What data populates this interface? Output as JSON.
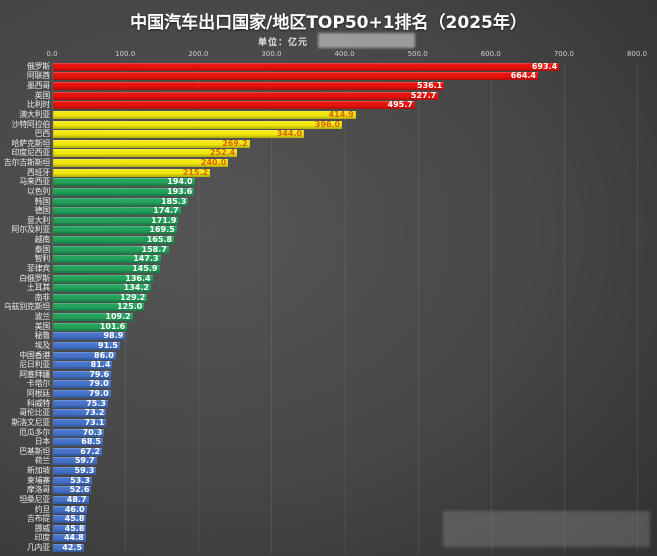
{
  "title": "中国汽车出口国家/地区TOP50+1排名（2025年）",
  "subtitle": "单位：亿元",
  "colors": {
    "background_center": "#555555",
    "background_edge": "#232323",
    "red": "#ea120c",
    "yellow": "#f2e90d",
    "green": "#23a25a",
    "blue": "#4674cb",
    "value_label_on_yellow": "#dd6500",
    "value_label_default": "#ffffff"
  },
  "chart_data": {
    "type": "bar",
    "orientation": "horizontal",
    "title": "中国汽车出口国家/地区TOP50+1排名（2025年）",
    "unit_label": "单位：亿元",
    "xlim": [
      0,
      800
    ],
    "tick_step": 100,
    "tick_labels": [
      "0.0",
      "100.0",
      "200.0",
      "300.0",
      "400.0",
      "500.0",
      "600.0",
      "700.0",
      "800.0"
    ],
    "grid": true,
    "value_labels_position": "inside-end",
    "categories": [
      "俄罗斯",
      "阿联酋",
      "墨西哥",
      "英国",
      "比利时",
      "澳大利亚",
      "沙特阿拉伯",
      "巴西",
      "哈萨克斯坦",
      "印度尼西亚",
      "吉尔吉斯斯坦",
      "西班牙",
      "马来西亚",
      "以色列",
      "韩国",
      "德国",
      "意大利",
      "阿尔及利亚",
      "越南",
      "泰国",
      "智利",
      "菲律宾",
      "白俄罗斯",
      "土耳其",
      "南非",
      "乌兹别克斯坦",
      "波兰",
      "美国",
      "秘鲁",
      "埃及",
      "中国香港",
      "尼日利亚",
      "阿塞拜疆",
      "卡塔尔",
      "阿根廷",
      "科威特",
      "哥伦比亚",
      "斯洛文尼亚",
      "厄瓜多尔",
      "日本",
      "巴基斯坦",
      "荷兰",
      "新加坡",
      "柬埔寨",
      "摩洛哥",
      "坦桑尼亚",
      "约旦",
      "吉布提",
      "挪威",
      "印度",
      "几内亚"
    ],
    "values": [
      693.4,
      664.4,
      536.1,
      527.7,
      495.7,
      414.9,
      396.0,
      344.0,
      269.2,
      252.4,
      240.0,
      215.2,
      194.0,
      193.6,
      185.3,
      174.7,
      171.9,
      169.5,
      165.8,
      158.7,
      147.3,
      145.9,
      136.4,
      134.2,
      129.2,
      125.0,
      109.2,
      101.6,
      98.9,
      91.5,
      86.0,
      81.4,
      79.6,
      79.0,
      79.0,
      75.3,
      73.2,
      73.1,
      70.3,
      68.5,
      67.2,
      59.7,
      59.3,
      53.3,
      52.6,
      48.7,
      46.0,
      45.8,
      45.8,
      44.8,
      42.5
    ],
    "bar_color_keys": [
      "red",
      "red",
      "red",
      "red",
      "red",
      "yellow",
      "yellow",
      "yellow",
      "yellow",
      "yellow",
      "yellow",
      "yellow",
      "green",
      "green",
      "green",
      "green",
      "green",
      "green",
      "green",
      "green",
      "green",
      "green",
      "green",
      "green",
      "green",
      "green",
      "green",
      "green",
      "blue",
      "blue",
      "blue",
      "blue",
      "blue",
      "blue",
      "blue",
      "blue",
      "blue",
      "blue",
      "blue",
      "blue",
      "blue",
      "blue",
      "blue",
      "blue",
      "blue",
      "blue",
      "blue",
      "blue",
      "blue",
      "blue",
      "blue"
    ]
  }
}
